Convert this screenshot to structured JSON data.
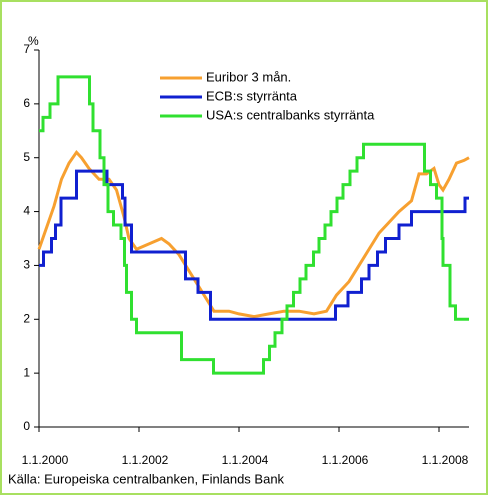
{
  "chart_data": {
    "type": "line",
    "y_label": "%",
    "source": "Källa: Europeiska centralbanken, Finlands Bank",
    "xlim": [
      2000,
      2008.6
    ],
    "xticks": [
      {
        "value": 2000,
        "label": "1.1.2000"
      },
      {
        "value": 2002,
        "label": "1.1.2002"
      },
      {
        "value": 2004,
        "label": "1.1.2004"
      },
      {
        "value": 2006,
        "label": "1.1.2006"
      },
      {
        "value": 2008,
        "label": "1.1.2008"
      }
    ],
    "ylim": [
      0,
      7
    ],
    "yticks": [
      0,
      1,
      2,
      3,
      4,
      5,
      6,
      7
    ],
    "legend": "top-right",
    "series": [
      {
        "name": "Euribor 3 mån.",
        "color": "#f7a030",
        "drawstyle": "linear",
        "x": [
          2000.0,
          2000.15,
          2000.3,
          2000.45,
          2000.6,
          2000.75,
          2000.85,
          2001.0,
          2001.2,
          2001.4,
          2001.55,
          2001.7,
          2001.8,
          2001.95,
          2002.2,
          2002.45,
          2002.6,
          2002.8,
          2003.0,
          2003.2,
          2003.4,
          2003.5,
          2003.8,
          2004.0,
          2004.3,
          2004.6,
          2004.9,
          2005.2,
          2005.5,
          2005.75,
          2005.95,
          2006.2,
          2006.4,
          2006.6,
          2006.8,
          2007.0,
          2007.2,
          2007.45,
          2007.6,
          2007.75,
          2007.9,
          2008.0,
          2008.08,
          2008.2,
          2008.35,
          2008.5,
          2008.6
        ],
        "values": [
          3.3,
          3.7,
          4.1,
          4.6,
          4.9,
          5.1,
          5.0,
          4.8,
          4.6,
          4.6,
          4.4,
          3.9,
          3.5,
          3.3,
          3.4,
          3.5,
          3.4,
          3.2,
          2.9,
          2.6,
          2.3,
          2.15,
          2.15,
          2.1,
          2.05,
          2.1,
          2.15,
          2.15,
          2.1,
          2.15,
          2.45,
          2.7,
          3.0,
          3.3,
          3.6,
          3.8,
          4.0,
          4.2,
          4.7,
          4.7,
          4.8,
          4.5,
          4.4,
          4.6,
          4.9,
          4.95,
          5.0
        ]
      },
      {
        "name": "ECB:s styrränta",
        "color": "#1020d0",
        "drawstyle": "steps-post",
        "x": [
          2000.0,
          2000.09,
          2000.25,
          2000.33,
          2000.44,
          2000.75,
          2001.36,
          2001.67,
          2001.72,
          2001.85,
          2002.93,
          2003.18,
          2003.43,
          2005.93,
          2006.18,
          2006.45,
          2006.6,
          2006.77,
          2006.93,
          2007.2,
          2007.45,
          2008.52,
          2008.6
        ],
        "values": [
          3.0,
          3.25,
          3.5,
          3.75,
          4.25,
          4.75,
          4.5,
          4.25,
          3.75,
          3.25,
          2.75,
          2.5,
          2.0,
          2.25,
          2.5,
          2.75,
          3.0,
          3.25,
          3.5,
          3.75,
          4.0,
          4.25,
          4.25
        ]
      },
      {
        "name": "USA:s centralbanks styrränta",
        "color": "#30e030",
        "drawstyle": "steps-post",
        "x": [
          2000.0,
          2000.08,
          2000.22,
          2000.38,
          2001.01,
          2001.08,
          2001.22,
          2001.3,
          2001.38,
          2001.49,
          2001.64,
          2001.71,
          2001.75,
          2001.85,
          2001.95,
          2002.85,
          2003.49,
          2004.49,
          2004.61,
          2004.72,
          2004.86,
          2004.96,
          2005.09,
          2005.22,
          2005.34,
          2005.49,
          2005.6,
          2005.72,
          2005.84,
          2005.96,
          2006.08,
          2006.22,
          2006.36,
          2006.49,
          2007.71,
          2007.83,
          2007.95,
          2008.06,
          2008.08,
          2008.22,
          2008.33,
          2008.6
        ],
        "values": [
          5.5,
          5.75,
          6.0,
          6.5,
          6.0,
          5.5,
          5.0,
          4.5,
          4.0,
          3.75,
          3.5,
          3.0,
          2.5,
          2.0,
          1.75,
          1.25,
          1.0,
          1.25,
          1.5,
          1.75,
          2.0,
          2.25,
          2.5,
          2.75,
          3.0,
          3.25,
          3.5,
          3.75,
          4.0,
          4.25,
          4.5,
          4.75,
          5.0,
          5.25,
          4.75,
          4.5,
          4.25,
          3.5,
          3.0,
          2.25,
          2.0,
          2.0
        ]
      }
    ]
  }
}
